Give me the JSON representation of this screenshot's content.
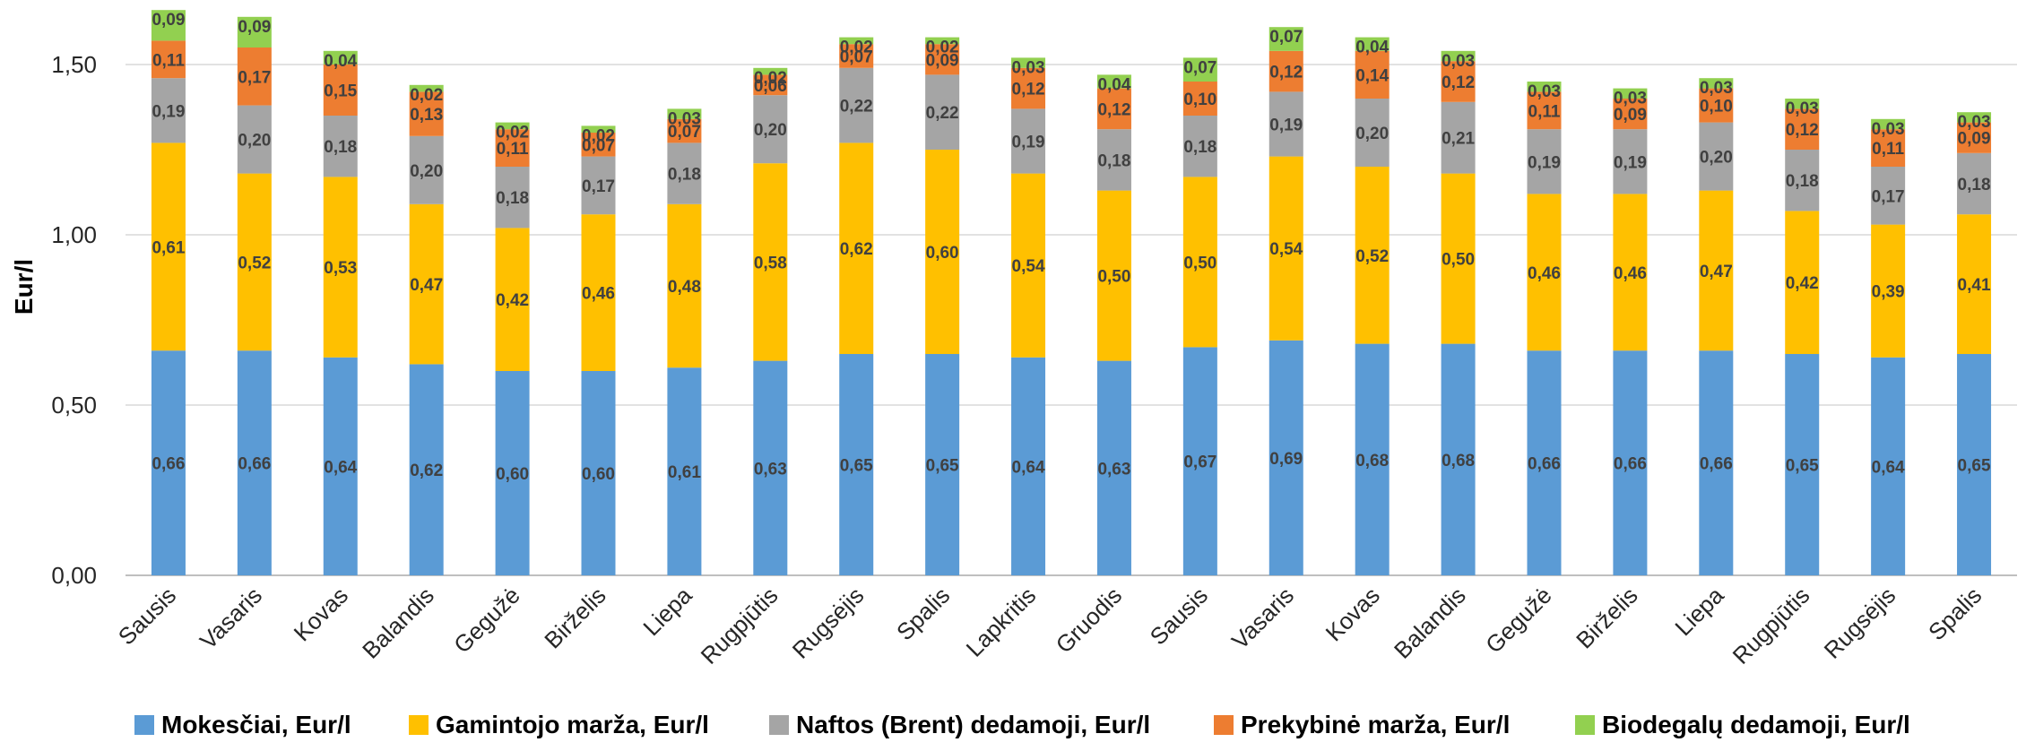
{
  "chart_data": {
    "type": "bar",
    "stacked": true,
    "ylabel": "Eur/l",
    "xlabel": "",
    "title": "",
    "ylim": [
      0,
      1.7
    ],
    "yticks": [
      "0,00",
      "0,50",
      "1,00",
      "1,50"
    ],
    "ytick_values": [
      0,
      0.5,
      1.0,
      1.5
    ],
    "grid": true,
    "legend_position": "bottom",
    "categories": [
      "Sausis",
      "Vasaris",
      "Kovas",
      "Balandis",
      "Gegužė",
      "Birželis",
      "Liepa",
      "Rugpjūtis",
      "Rugsėjis",
      "Spalis",
      "Lapkritis",
      "Gruodis",
      "Sausis",
      "Vasaris",
      "Kovas",
      "Balandis",
      "Gegužė",
      "Birželis",
      "Liepa",
      "Rugpjūtis",
      "Rugsėjis",
      "Spalis"
    ],
    "series": [
      {
        "name": "Mokesčiai, Eur/l",
        "color": "#5B9BD5",
        "values": [
          0.66,
          0.66,
          0.64,
          0.62,
          0.6,
          0.6,
          0.61,
          0.63,
          0.65,
          0.65,
          0.64,
          0.63,
          0.67,
          0.69,
          0.68,
          0.68,
          0.66,
          0.66,
          0.66,
          0.65,
          0.64,
          0.65
        ],
        "labels": [
          "0,66",
          "0,66",
          "0,64",
          "0,62",
          "0,60",
          "0,60",
          "0,61",
          "0,63",
          "0,65",
          "0,65",
          "0,64",
          "0,63",
          "0,67",
          "0,69",
          "0,68",
          "0,68",
          "0,66",
          "0,66",
          "0,66",
          "0,65",
          "0,64",
          "0,65"
        ]
      },
      {
        "name": "Gamintojo marža, Eur/l",
        "color": "#FFC000",
        "values": [
          0.61,
          0.52,
          0.53,
          0.47,
          0.42,
          0.46,
          0.48,
          0.58,
          0.62,
          0.6,
          0.54,
          0.5,
          0.5,
          0.54,
          0.52,
          0.5,
          0.46,
          0.46,
          0.47,
          0.42,
          0.39,
          0.41
        ],
        "labels": [
          "0,61",
          "0,52",
          "0,53",
          "0,47",
          "0,42",
          "0,46",
          "0,48",
          "0,58",
          "0,62",
          "0,60",
          "0,54",
          "0,50",
          "0,50",
          "0,54",
          "0,52",
          "0,50",
          "0,46",
          "0,46",
          "0,47",
          "0,42",
          "0,39",
          "0,41"
        ]
      },
      {
        "name": "Naftos (Brent) dedamoji, Eur/l",
        "color": "#A5A5A5",
        "values": [
          0.19,
          0.2,
          0.18,
          0.2,
          0.18,
          0.17,
          0.18,
          0.2,
          0.22,
          0.22,
          0.19,
          0.18,
          0.18,
          0.19,
          0.2,
          0.21,
          0.19,
          0.19,
          0.2,
          0.18,
          0.17,
          0.18
        ],
        "labels": [
          "0,19",
          "0,20",
          "0,18",
          "0,20",
          "0,18",
          "0,17",
          "0,18",
          "0,20",
          "0,22",
          "0,22",
          "0,19",
          "0,18",
          "0,18",
          "0,19",
          "0,20",
          "0,21",
          "0,19",
          "0,19",
          "0,20",
          "0,18",
          "0,17",
          "0,18"
        ]
      },
      {
        "name": "Prekybinė marža, Eur/l",
        "color": "#ED7D31",
        "values": [
          0.11,
          0.17,
          0.15,
          0.13,
          0.11,
          0.07,
          0.07,
          0.06,
          0.07,
          0.09,
          0.12,
          0.12,
          0.1,
          0.12,
          0.14,
          0.12,
          0.11,
          0.09,
          0.1,
          0.12,
          0.11,
          0.09
        ],
        "labels": [
          "0,11",
          "0,17",
          "0,15",
          "0,13",
          "0,11",
          "0,07",
          "0,07",
          "0,06",
          "0,07",
          "0,09",
          "0,12",
          "0,12",
          "0,10",
          "0,12",
          "0,14",
          "0,12",
          "0,11",
          "0,09",
          "0,10",
          "0,12",
          "0,11",
          "0,09"
        ]
      },
      {
        "name": "Biodegalų dedamoji, Eur/l",
        "color": "#92D050",
        "values": [
          0.09,
          0.09,
          0.04,
          0.02,
          0.02,
          0.02,
          0.03,
          0.02,
          0.02,
          0.02,
          0.03,
          0.04,
          0.07,
          0.07,
          0.04,
          0.03,
          0.03,
          0.03,
          0.03,
          0.03,
          0.03,
          0.03
        ],
        "labels": [
          "0,09",
          "0,09",
          "0,04",
          "0,02",
          "0,02",
          "0,02",
          "0,03",
          "0,02",
          "0,02",
          "0,02",
          "0,03",
          "0,04",
          "0,07",
          "0,07",
          "0,04",
          "0,03",
          "0,03",
          "0,03",
          "0,03",
          "0,03",
          "0,03",
          "0,03"
        ]
      }
    ]
  }
}
